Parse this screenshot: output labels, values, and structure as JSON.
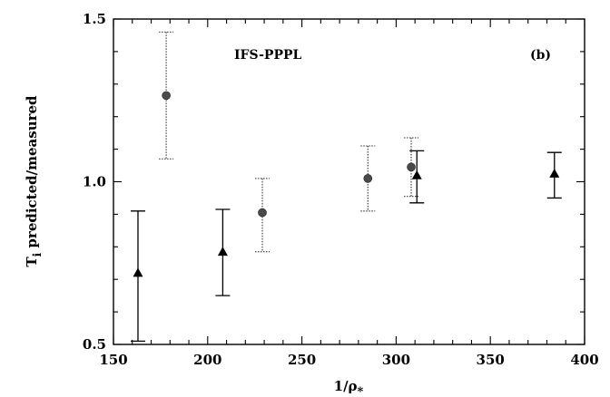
{
  "chart_data": {
    "type": "scatter",
    "title": "IFS-PPPL",
    "panel_label": "(b)",
    "xlabel": "1/ρ",
    "xlabel_sub": "*",
    "ylabel": "T",
    "ylabel_sub": "i",
    "ylabel_rest": " predicted/measured",
    "xlim": [
      150,
      400
    ],
    "ylim": [
      0.5,
      1.5
    ],
    "x_ticks": [
      150,
      200,
      250,
      300,
      350,
      400
    ],
    "x_tick_labels": [
      "150",
      "200",
      "250",
      "300",
      "350",
      "400"
    ],
    "y_ticks": [
      0.5,
      1.0,
      1.5
    ],
    "y_tick_labels": [
      "0.5",
      "1.0",
      "1.5"
    ],
    "grid": false,
    "series": [
      {
        "marker": "triangle",
        "errorbar_style": "solid",
        "points": [
          {
            "x": 163,
            "y": 0.72,
            "ylow": 0.51,
            "yhigh": 0.91
          },
          {
            "x": 208,
            "y": 0.785,
            "ylow": 0.65,
            "yhigh": 0.915
          },
          {
            "x": 311,
            "y": 1.02,
            "ylow": 0.935,
            "yhigh": 1.095
          },
          {
            "x": 384,
            "y": 1.025,
            "ylow": 0.95,
            "yhigh": 1.09
          }
        ]
      },
      {
        "marker": "circle",
        "errorbar_style": "dotted",
        "points": [
          {
            "x": 178,
            "y": 1.265,
            "ylow": 1.07,
            "yhigh": 1.46
          },
          {
            "x": 229,
            "y": 0.905,
            "ylow": 0.785,
            "yhigh": 1.01
          },
          {
            "x": 285,
            "y": 1.01,
            "ylow": 0.91,
            "yhigh": 1.11
          },
          {
            "x": 308,
            "y": 1.045,
            "ylow": 0.955,
            "yhigh": 1.135
          }
        ]
      }
    ]
  }
}
